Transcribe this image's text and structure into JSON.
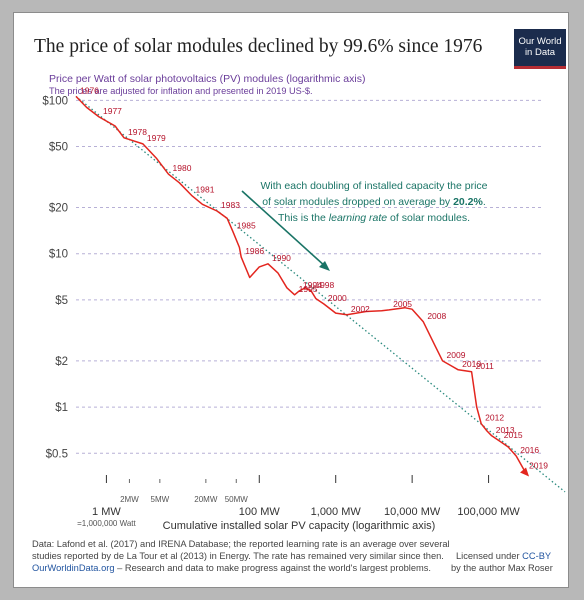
{
  "header": {
    "title": "The price of solar modules declined by 99.6% since 1976",
    "subtitle": "Price per Watt of solar photovoltaics (PV) modules (logarithmic axis)",
    "subtitle_note": "The prices are adjusted for inflation and presented in 2019 US-$.",
    "logo_line1": "Our World",
    "logo_line2": "in Data"
  },
  "chart_data": {
    "type": "line",
    "title": "The price of solar modules declined by 99.6% since 1976",
    "ylabel": "Price per Watt of solar photovoltaics (PV) modules (logarithmic axis)",
    "xlabel": "Cumulative installed solar PV capacity (logarithmic axis)",
    "x_scale": "log",
    "y_scale": "log",
    "xlim": [
      0.4,
      500000
    ],
    "ylim": [
      0.32,
      110
    ],
    "y_ticks": [
      {
        "value": 100,
        "label": "$100"
      },
      {
        "value": 50,
        "label": "$50"
      },
      {
        "value": 20,
        "label": "$20"
      },
      {
        "value": 10,
        "label": "$10"
      },
      {
        "value": 5,
        "label": "$5"
      },
      {
        "value": 2,
        "label": "$2"
      },
      {
        "value": 1,
        "label": "$1"
      },
      {
        "value": 0.5,
        "label": "$0.5"
      }
    ],
    "x_ticks_major": [
      {
        "value": 1,
        "label": "1 MW"
      },
      {
        "value": 100,
        "label": "100 MW"
      },
      {
        "value": 1000,
        "label": "1,000 MW"
      },
      {
        "value": 10000,
        "label": "10,000 MW"
      },
      {
        "value": 100000,
        "label": "100,000 MW"
      }
    ],
    "x_ticks_minor": [
      {
        "value": 2,
        "label": "2MW"
      },
      {
        "value": 5,
        "label": "5MW"
      },
      {
        "value": 20,
        "label": "20MW"
      },
      {
        "value": 50,
        "label": "50MW"
      }
    ],
    "x_note": "=1,000,000 Watt",
    "grid": true,
    "series": [
      {
        "color": "#e3261f",
        "points": [
          {
            "x": 0.4,
            "y": 106.1,
            "label": "1976"
          },
          {
            "x": 0.55,
            "y": 90
          },
          {
            "x": 0.8,
            "y": 78,
            "label": "1977"
          },
          {
            "x": 1.3,
            "y": 68
          },
          {
            "x": 1.7,
            "y": 57,
            "label": "1978"
          },
          {
            "x": 3.0,
            "y": 52,
            "label": "1979"
          },
          {
            "x": 4.5,
            "y": 42
          },
          {
            "x": 6.5,
            "y": 33,
            "label": "1980"
          },
          {
            "x": 9,
            "y": 29
          },
          {
            "x": 13,
            "y": 24,
            "label": "1981"
          },
          {
            "x": 18,
            "y": 21
          },
          {
            "x": 28,
            "y": 19,
            "label": "1983"
          },
          {
            "x": 38,
            "y": 17
          },
          {
            "x": 45,
            "y": 14,
            "label": "1985"
          },
          {
            "x": 55,
            "y": 11
          },
          {
            "x": 58,
            "y": 9.5,
            "label": "1986"
          },
          {
            "x": 75,
            "y": 7.0
          },
          {
            "x": 85,
            "y": 7.5
          },
          {
            "x": 100,
            "y": 8.2
          },
          {
            "x": 130,
            "y": 8.6,
            "label": "1990"
          },
          {
            "x": 175,
            "y": 7.5
          },
          {
            "x": 230,
            "y": 6.0
          },
          {
            "x": 290,
            "y": 5.4,
            "label": "1995"
          },
          {
            "x": 330,
            "y": 5.7,
            "label": "1994"
          },
          {
            "x": 400,
            "y": 6.0
          },
          {
            "x": 480,
            "y": 5.7,
            "label": "1998"
          },
          {
            "x": 550,
            "y": 5.1
          },
          {
            "x": 700,
            "y": 4.7,
            "label": "2000"
          },
          {
            "x": 1000,
            "y": 4.1
          },
          {
            "x": 1400,
            "y": 4.0,
            "label": "2002"
          },
          {
            "x": 2500,
            "y": 4.2
          },
          {
            "x": 4000,
            "y": 4.25
          },
          {
            "x": 5000,
            "y": 4.3,
            "label": "2005"
          },
          {
            "x": 8000,
            "y": 4.45
          },
          {
            "x": 10000,
            "y": 4.35
          },
          {
            "x": 14000,
            "y": 3.6,
            "label": "2008"
          },
          {
            "x": 20000,
            "y": 2.5
          },
          {
            "x": 25000,
            "y": 2.0,
            "label": "2009"
          },
          {
            "x": 33000,
            "y": 1.85
          },
          {
            "x": 40000,
            "y": 1.75,
            "label": "2010"
          },
          {
            "x": 60000,
            "y": 1.7,
            "label": "2011"
          },
          {
            "x": 70000,
            "y": 1.0
          },
          {
            "x": 80000,
            "y": 0.78,
            "label": "2012"
          },
          {
            "x": 95000,
            "y": 0.7
          },
          {
            "x": 110000,
            "y": 0.65,
            "label": "2013"
          },
          {
            "x": 140000,
            "y": 0.6,
            "label": "2015"
          },
          {
            "x": 180000,
            "y": 0.55
          },
          {
            "x": 230000,
            "y": 0.48,
            "label": "2016"
          },
          {
            "x": 300000,
            "y": 0.38,
            "label": "2019"
          }
        ]
      }
    ],
    "trend_line": {
      "style": "dotted",
      "color": "#2b8a7e",
      "points": [
        {
          "x": 0.4,
          "y": 106.1
        },
        {
          "x": 1000000,
          "y": 0.28
        }
      ]
    },
    "annotation": {
      "line1": "With each doubling of installed capacity the price",
      "line2_before": "of solar modules dropped on average by ",
      "line2_value": "20.2%",
      "line2_after": ".",
      "line3_before": "This is the ",
      "line3_italic": "learning rate",
      "line3_after": " of solar modules.",
      "color": "#1a7466"
    }
  },
  "footer": {
    "line1": "Data: Lafond et al. (2017) and IRENA Database; the reported learning rate is an average over several",
    "line2": "studies reported by de La Tour et al (2013) in Energy. The rate has remained very similar since then.",
    "site_link": "OurWorldinData.org",
    "line3_rest": " – Research and data to make progress against the world's largest problems.",
    "license_text": "Licensed under ",
    "license_link": "CC-BY",
    "author": "by the author Max Roser"
  }
}
